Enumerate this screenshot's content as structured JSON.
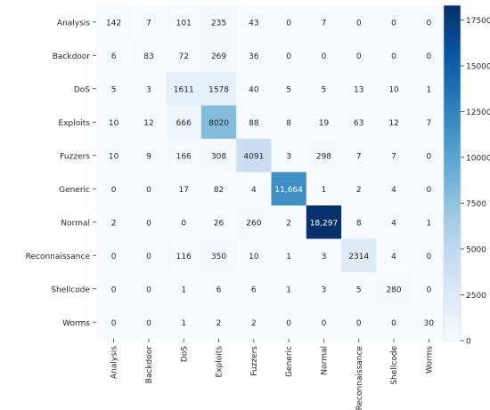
{
  "chart_data": {
    "type": "heatmap",
    "rows": [
      "Analysis",
      "Backdoor",
      "DoS",
      "Exploits",
      "Fuzzers",
      "Generic",
      "Normal",
      "Reconnaissance",
      "Shellcode",
      "Worms"
    ],
    "columns": [
      "Analysis",
      "Backdoor",
      "DoS",
      "Exploits",
      "Fuzzers",
      "Generic",
      "Normal",
      "Reconnaissance",
      "Shellcode",
      "Worms"
    ],
    "values": [
      [
        142,
        7,
        101,
        235,
        43,
        0,
        7,
        0,
        0,
        0
      ],
      [
        6,
        83,
        72,
        269,
        36,
        0,
        0,
        0,
        0,
        0
      ],
      [
        5,
        3,
        1611,
        1578,
        40,
        5,
        5,
        13,
        10,
        1
      ],
      [
        10,
        12,
        666,
        8020,
        88,
        8,
        19,
        63,
        12,
        7
      ],
      [
        10,
        9,
        166,
        308,
        4091,
        3,
        298,
        7,
        7,
        0
      ],
      [
        0,
        0,
        17,
        82,
        4,
        11664,
        1,
        2,
        4,
        0
      ],
      [
        2,
        0,
        0,
        26,
        260,
        2,
        18297,
        8,
        4,
        1
      ],
      [
        0,
        0,
        116,
        350,
        10,
        1,
        3,
        2314,
        4,
        0
      ],
      [
        0,
        0,
        1,
        6,
        6,
        1,
        3,
        5,
        280,
        0
      ],
      [
        0,
        0,
        1,
        2,
        2,
        0,
        0,
        0,
        0,
        30
      ]
    ],
    "cell_labels": [
      [
        "142",
        "7",
        "101",
        "235",
        "43",
        "0",
        "7",
        "0",
        "0",
        "0"
      ],
      [
        "6",
        "83",
        "72",
        "269",
        "36",
        "0",
        "0",
        "0",
        "0",
        "0"
      ],
      [
        "5",
        "3",
        "1611",
        "1578",
        "40",
        "5",
        "5",
        "13",
        "10",
        "1"
      ],
      [
        "10",
        "12",
        "666",
        "8020",
        "88",
        "8",
        "19",
        "63",
        "12",
        "7"
      ],
      [
        "10",
        "9",
        "166",
        "308",
        "4091",
        "3",
        "298",
        "7",
        "7",
        "0"
      ],
      [
        "0",
        "0",
        "17",
        "82",
        "4",
        "11,664",
        "1",
        "2",
        "4",
        "0"
      ],
      [
        "2",
        "0",
        "0",
        "26",
        "260",
        "2",
        "18,297",
        "8",
        "4",
        "1"
      ],
      [
        "0",
        "0",
        "116",
        "350",
        "10",
        "1",
        "3",
        "2314",
        "4",
        "0"
      ],
      [
        "0",
        "0",
        "1",
        "6",
        "6",
        "1",
        "3",
        "5",
        "280",
        "0"
      ],
      [
        "0",
        "0",
        "1",
        "2",
        "2",
        "0",
        "0",
        "0",
        "0",
        "30"
      ]
    ],
    "colorbar": {
      "min": 0,
      "max": 18297,
      "ticks": [
        0,
        2500,
        5000,
        7500,
        10000,
        12500,
        15000,
        17500
      ],
      "colormap": "Blues",
      "low_color": "#f7fbff",
      "high_color": "#08306b"
    },
    "title": "",
    "xlabel": "",
    "ylabel": ""
  }
}
